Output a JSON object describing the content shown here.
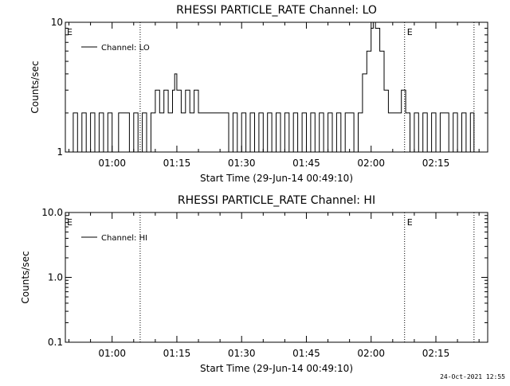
{
  "chart_data": [
    {
      "type": "line",
      "title": "RHESSI PARTICLE_RATE Channel: LO",
      "xlabel": "Start Time (29-Jun-14 00:49:10)",
      "ylabel": "Counts/sec",
      "y_scale": "log",
      "ylim": [
        1,
        10
      ],
      "y_ticks": [
        {
          "value": 1,
          "label": "1"
        },
        {
          "value": 10,
          "label": "10"
        }
      ],
      "xlim": [
        "00:49:10",
        "02:27:00"
      ],
      "x_ticks": [
        "01:00",
        "01:15",
        "01:30",
        "01:45",
        "02:00",
        "02:15"
      ],
      "grid": false,
      "legend": "top-left",
      "legend_entries": [
        "Channel: LO"
      ],
      "annotations": [
        {
          "text": "E",
          "position": "left-edge"
        },
        {
          "text": "E",
          "position": "right-of-dotted-line"
        }
      ],
      "vertical_dotted_lines": [
        "01:06:30",
        "02:07:45",
        "02:23:50"
      ],
      "series": [
        {
          "name": "Channel: LO",
          "points": [
            [
              "00:49:10",
              1
            ],
            [
              "00:51:00",
              2
            ],
            [
              "00:52:00",
              1
            ],
            [
              "00:53:00",
              2
            ],
            [
              "00:54:00",
              1
            ],
            [
              "00:55:00",
              2
            ],
            [
              "00:56:00",
              1
            ],
            [
              "00:57:00",
              2
            ],
            [
              "00:58:00",
              1
            ],
            [
              "00:59:00",
              2
            ],
            [
              "01:00:00",
              1
            ],
            [
              "01:01:30",
              2
            ],
            [
              "01:04:00",
              1
            ],
            [
              "01:05:00",
              2
            ],
            [
              "01:06:00",
              1
            ],
            [
              "01:07:00",
              2
            ],
            [
              "01:08:00",
              1
            ],
            [
              "01:09:00",
              2
            ],
            [
              "01:10:00",
              3
            ],
            [
              "01:11:00",
              2
            ],
            [
              "01:12:00",
              3
            ],
            [
              "01:13:00",
              2
            ],
            [
              "01:14:00",
              3
            ],
            [
              "01:14:30",
              4
            ],
            [
              "01:15:00",
              3
            ],
            [
              "01:16:00",
              2
            ],
            [
              "01:17:00",
              3
            ],
            [
              "01:18:00",
              2
            ],
            [
              "01:19:00",
              3
            ],
            [
              "01:20:00",
              2
            ],
            [
              "01:27:00",
              1
            ],
            [
              "01:28:00",
              2
            ],
            [
              "01:29:00",
              1
            ],
            [
              "01:30:00",
              2
            ],
            [
              "01:31:00",
              1
            ],
            [
              "01:32:00",
              2
            ],
            [
              "01:33:00",
              1
            ],
            [
              "01:34:00",
              2
            ],
            [
              "01:35:00",
              1
            ],
            [
              "01:36:00",
              2
            ],
            [
              "01:37:00",
              1
            ],
            [
              "01:38:00",
              2
            ],
            [
              "01:39:00",
              1
            ],
            [
              "01:40:00",
              2
            ],
            [
              "01:41:00",
              1
            ],
            [
              "01:42:00",
              2
            ],
            [
              "01:43:00",
              1
            ],
            [
              "01:44:00",
              2
            ],
            [
              "01:45:00",
              1
            ],
            [
              "01:46:00",
              2
            ],
            [
              "01:47:00",
              1
            ],
            [
              "01:48:00",
              2
            ],
            [
              "01:49:00",
              1
            ],
            [
              "01:50:00",
              2
            ],
            [
              "01:51:00",
              1
            ],
            [
              "01:52:00",
              2
            ],
            [
              "01:53:00",
              1
            ],
            [
              "01:54:00",
              2
            ],
            [
              "01:56:00",
              1
            ],
            [
              "01:57:00",
              2
            ],
            [
              "01:58:00",
              4
            ],
            [
              "01:59:00",
              6
            ],
            [
              "02:00:00",
              9
            ],
            [
              "02:00:30",
              10
            ],
            [
              "02:01:00",
              9
            ],
            [
              "02:02:00",
              6
            ],
            [
              "02:03:00",
              3
            ],
            [
              "02:04:00",
              2
            ],
            [
              "02:07:00",
              3
            ],
            [
              "02:08:00",
              2
            ],
            [
              "02:09:00",
              1
            ],
            [
              "02:10:00",
              2
            ],
            [
              "02:11:00",
              1
            ],
            [
              "02:12:00",
              2
            ],
            [
              "02:13:00",
              1
            ],
            [
              "02:14:00",
              2
            ],
            [
              "02:15:00",
              1
            ],
            [
              "02:16:00",
              2
            ],
            [
              "02:18:00",
              1
            ],
            [
              "02:19:00",
              2
            ],
            [
              "02:20:00",
              1
            ],
            [
              "02:21:00",
              2
            ],
            [
              "02:22:00",
              1
            ],
            [
              "02:23:00",
              2
            ],
            [
              "02:23:50",
              1
            ]
          ]
        }
      ]
    },
    {
      "type": "line",
      "title": "RHESSI PARTICLE_RATE Channel: HI",
      "xlabel": "Start Time (29-Jun-14 00:49:10)",
      "ylabel": "Counts/sec",
      "y_scale": "log",
      "ylim": [
        0.1,
        10
      ],
      "y_ticks": [
        {
          "value": 0.1,
          "label": "0.1"
        },
        {
          "value": 1,
          "label": "1.0"
        },
        {
          "value": 10,
          "label": "10.0"
        }
      ],
      "xlim": [
        "00:49:10",
        "02:27:00"
      ],
      "x_ticks": [
        "01:00",
        "01:15",
        "01:30",
        "01:45",
        "02:00",
        "02:15"
      ],
      "grid": false,
      "legend": "top-left",
      "legend_entries": [
        "Channel: HI"
      ],
      "annotations": [
        {
          "text": "E",
          "position": "left-edge"
        },
        {
          "text": "E",
          "position": "right-of-dotted-line"
        }
      ],
      "vertical_dotted_lines": [
        "01:06:30",
        "02:07:45",
        "02:23:50"
      ],
      "series": [
        {
          "name": "Channel: HI",
          "points": []
        }
      ]
    }
  ],
  "footer": {
    "timestamp": "24-Oct-2021 12:55"
  }
}
